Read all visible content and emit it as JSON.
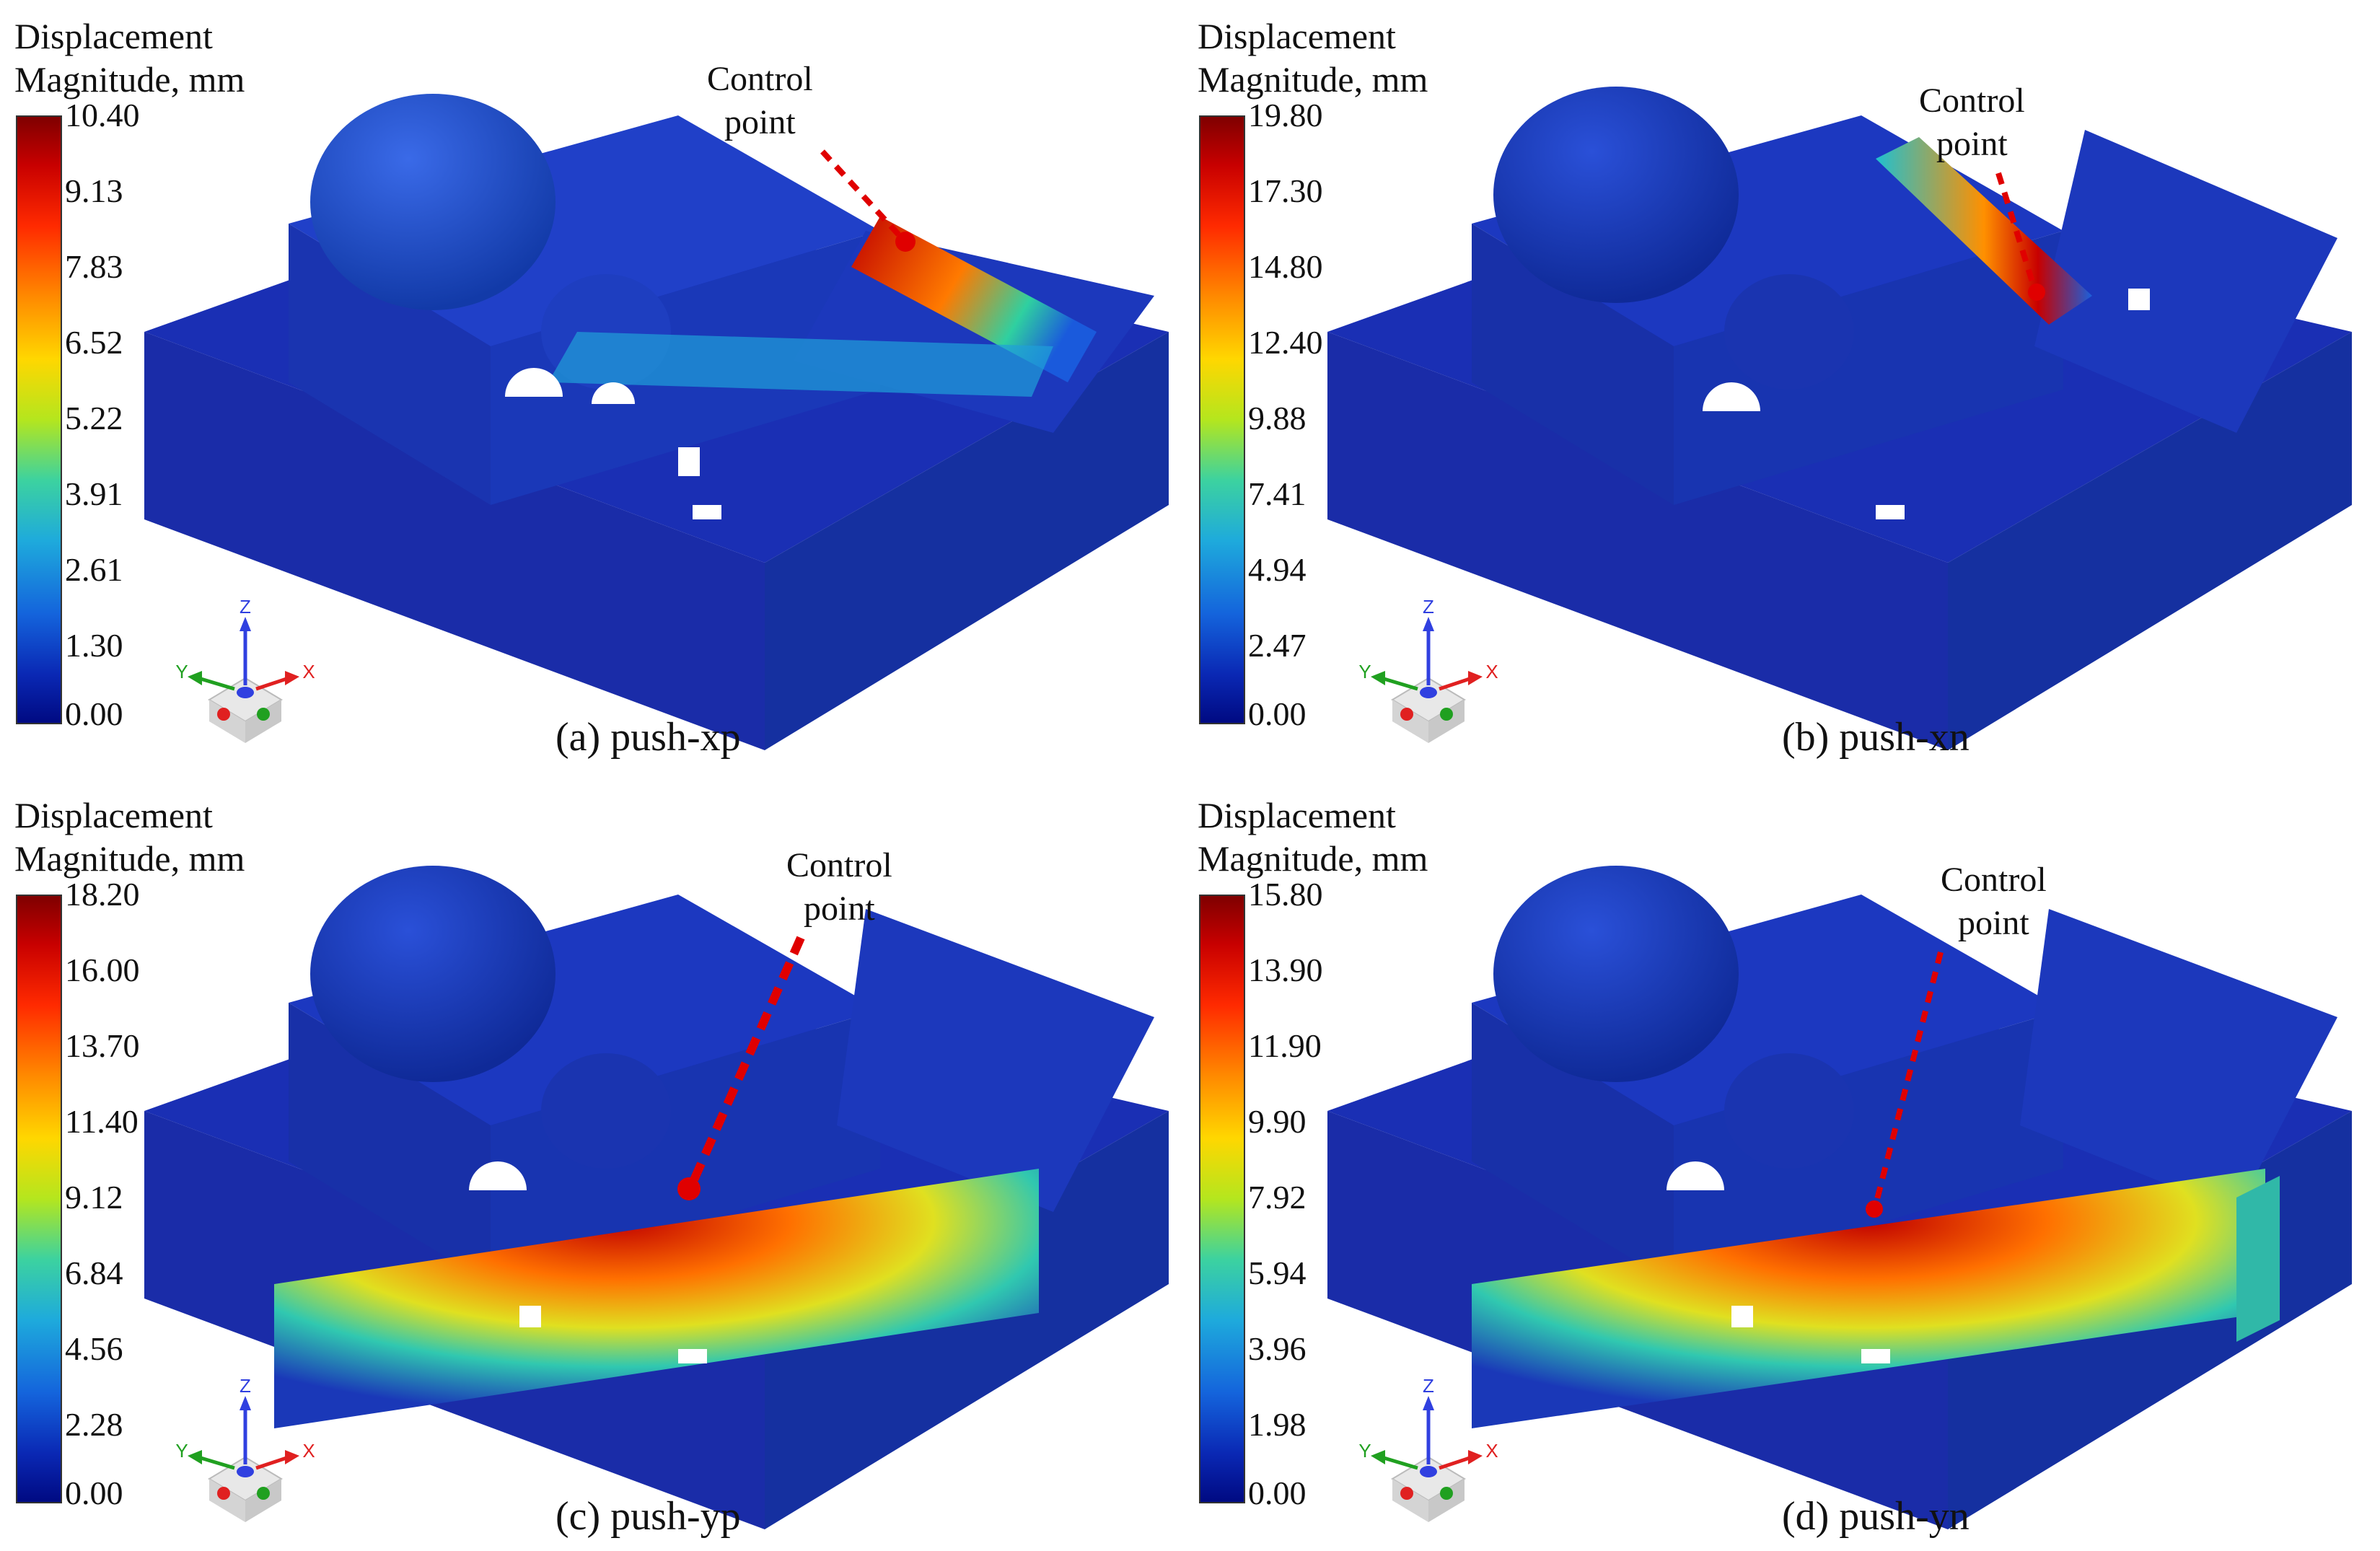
{
  "panels": [
    {
      "id": "a",
      "legend_title_line1": "Displacement",
      "legend_title_line2": "Magnitude, mm",
      "ticks": [
        "10.40",
        "9.13",
        "7.83",
        "6.52",
        "5.22",
        "3.91",
        "2.61",
        "1.30",
        "0.00"
      ],
      "control_label_line1": "Control",
      "control_label_line2": "point",
      "caption": "(a) push-xp"
    },
    {
      "id": "b",
      "legend_title_line1": "Displacement",
      "legend_title_line2": "Magnitude, mm",
      "ticks": [
        "19.80",
        "17.30",
        "14.80",
        "12.40",
        "9.88",
        "7.41",
        "4.94",
        "2.47",
        "0.00"
      ],
      "control_label_line1": "Control",
      "control_label_line2": "point",
      "caption": "(b) push-xn"
    },
    {
      "id": "c",
      "legend_title_line1": "Displacement",
      "legend_title_line2": "Magnitude, mm",
      "ticks": [
        "18.20",
        "16.00",
        "13.70",
        "11.40",
        "9.12",
        "6.84",
        "4.56",
        "2.28",
        "0.00"
      ],
      "control_label_line1": "Control",
      "control_label_line2": "point",
      "caption": "(c) push-yp"
    },
    {
      "id": "d",
      "legend_title_line1": "Displacement",
      "legend_title_line2": "Magnitude, mm",
      "ticks": [
        "15.80",
        "13.90",
        "11.90",
        "9.90",
        "7.92",
        "5.94",
        "3.96",
        "1.98",
        "0.00"
      ],
      "control_label_line1": "Control",
      "control_label_line2": "point",
      "caption": "(d) push-yn"
    }
  ],
  "axis_labels": {
    "z": "Z",
    "y": "Y",
    "x": "X"
  },
  "colors": {
    "model_body": "#1a2fb4",
    "model_dark": "#0d1a8c",
    "model_shade": "#2440d0",
    "control_marker": "#e00000",
    "axis_x": "#e02020",
    "axis_y": "#20a020",
    "axis_z": "#3040e0"
  }
}
